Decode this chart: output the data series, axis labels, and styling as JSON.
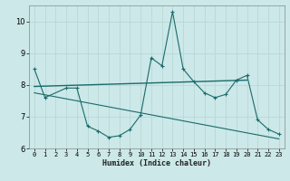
{
  "xlabel": "Humidex (Indice chaleur)",
  "ylabel": "",
  "background_color": "#cce8e8",
  "grid_color": "#aacccc",
  "line_color": "#1a6b6b",
  "x_data": [
    0,
    1,
    2,
    3,
    4,
    5,
    6,
    7,
    8,
    9,
    10,
    11,
    12,
    13,
    14,
    15,
    16,
    17,
    18,
    19,
    20,
    21,
    22,
    23
  ],
  "y_main": [
    8.5,
    7.6,
    null,
    7.9,
    7.9,
    6.7,
    6.55,
    6.35,
    6.4,
    6.6,
    7.05,
    8.85,
    8.6,
    10.3,
    8.5,
    8.1,
    7.75,
    7.6,
    7.7,
    8.15,
    8.3,
    6.9,
    6.6,
    6.45
  ],
  "y_trend1_x": [
    0,
    20
  ],
  "y_trend1_y": [
    7.95,
    8.15
  ],
  "y_trend2_x": [
    0,
    23
  ],
  "y_trend2_y": [
    7.75,
    6.3
  ],
  "ylim": [
    6.0,
    10.5
  ],
  "yticks": [
    6,
    7,
    8,
    9,
    10
  ],
  "xlim": [
    -0.5,
    23.5
  ],
  "xticks": [
    0,
    1,
    2,
    3,
    4,
    5,
    6,
    7,
    8,
    9,
    10,
    11,
    12,
    13,
    14,
    15,
    16,
    17,
    18,
    19,
    20,
    21,
    22,
    23
  ]
}
